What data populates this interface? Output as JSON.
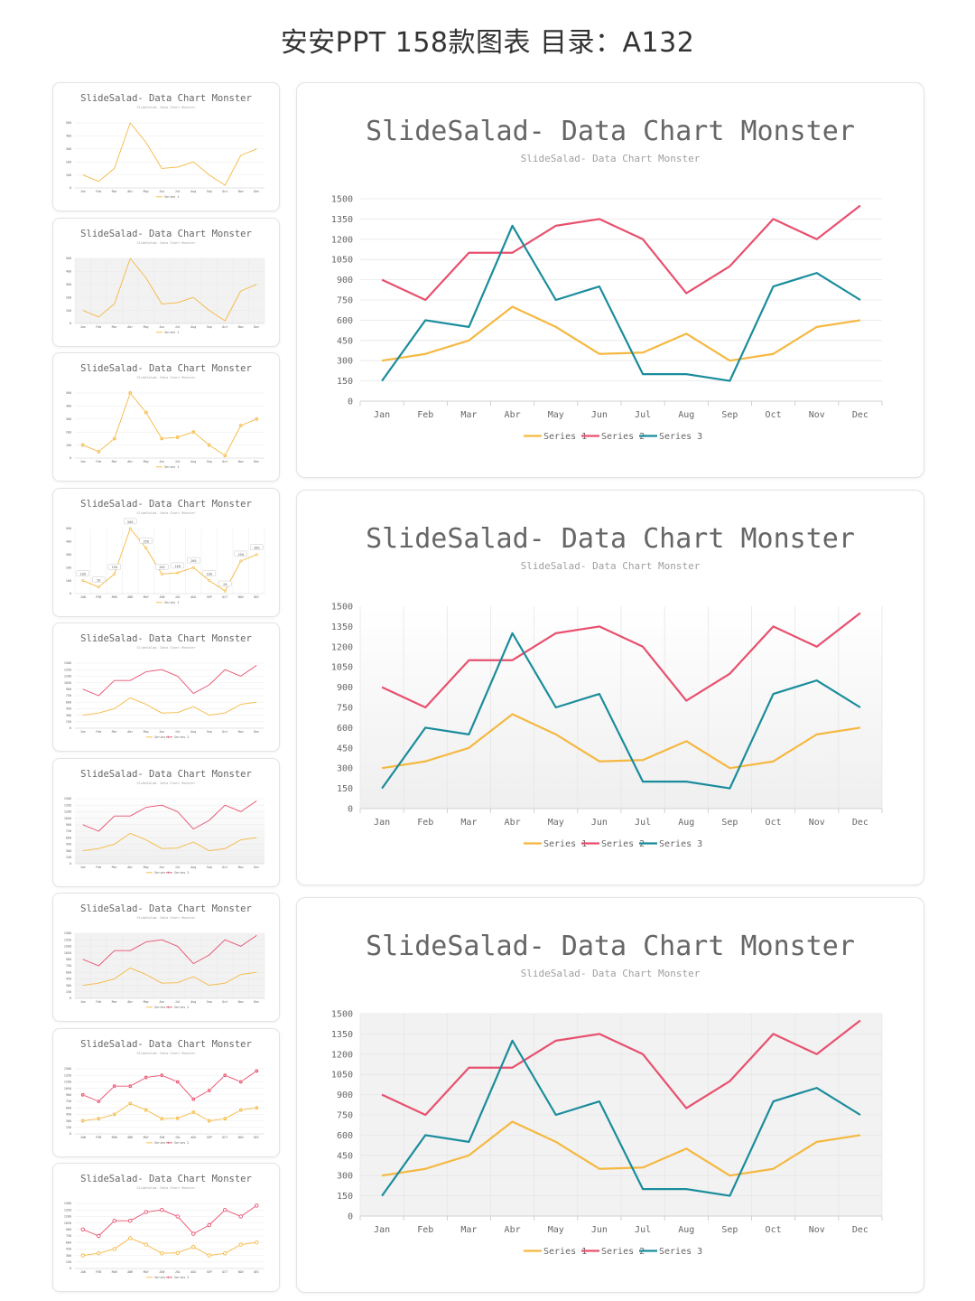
{
  "page": {
    "title": "安安PPT 158款图表 目录：A132"
  },
  "colors": {
    "series1": "#F5B841",
    "series2": "#E8506E",
    "series3": "#1A8C9C",
    "grid": "#e6e6e6",
    "plot_bg_gradient_top": "#ffffff",
    "plot_bg_gradient_bottom": "#efefef",
    "plot_bg_grey": "#f2f2f2"
  },
  "chart_data": [
    {
      "type": "line",
      "title": "SlideSalad- Data Chart Monster",
      "subtitle": "SlideSalad- Data Chart Monster",
      "categories": [
        "Jan",
        "Feb",
        "Mar",
        "Abr",
        "May",
        "Jun",
        "Jul",
        "Aug",
        "Sep",
        "Oct",
        "Nov",
        "Dec"
      ],
      "series": [
        {
          "name": "Series 1",
          "values": [
            300,
            350,
            450,
            700,
            550,
            350,
            360,
            500,
            300,
            350,
            550,
            600
          ]
        },
        {
          "name": "Series 2",
          "values": [
            900,
            750,
            1100,
            1100,
            1300,
            1350,
            1200,
            800,
            1000,
            1350,
            1200,
            1450
          ]
        },
        {
          "name": "Series 3",
          "values": [
            150,
            600,
            550,
            1300,
            750,
            850,
            200,
            200,
            150,
            850,
            950,
            750
          ]
        }
      ],
      "ylim": [
        0,
        1500
      ],
      "yticks": [
        0,
        150,
        300,
        450,
        600,
        750,
        900,
        1050,
        1200,
        1350,
        1500
      ],
      "grid": "horizontal",
      "background": "white",
      "legend": "bottom"
    },
    {
      "type": "line",
      "title": "SlideSalad- Data Chart Monster",
      "subtitle": "SlideSalad- Data Chart Monster",
      "categories": [
        "Jan",
        "Feb",
        "Mar",
        "Abr",
        "May",
        "Jun",
        "Jul",
        "Aug",
        "Sep",
        "Oct",
        "Nov",
        "Dec"
      ],
      "series": [
        {
          "name": "Series 1",
          "values": [
            300,
            350,
            450,
            700,
            550,
            350,
            360,
            500,
            300,
            350,
            550,
            600
          ]
        },
        {
          "name": "Series 2",
          "values": [
            900,
            750,
            1100,
            1100,
            1300,
            1350,
            1200,
            800,
            1000,
            1350,
            1200,
            1450
          ]
        },
        {
          "name": "Series 3",
          "values": [
            150,
            600,
            550,
            1300,
            750,
            850,
            200,
            200,
            150,
            850,
            950,
            750
          ]
        }
      ],
      "ylim": [
        0,
        1500
      ],
      "yticks": [
        0,
        150,
        300,
        450,
        600,
        750,
        900,
        1050,
        1200,
        1350,
        1500
      ],
      "grid": "vertical",
      "background": "gradient",
      "legend": "bottom"
    },
    {
      "type": "line",
      "title": "SlideSalad- Data Chart Monster",
      "subtitle": "SlideSalad- Data Chart Monster",
      "categories": [
        "Jan",
        "Feb",
        "Mar",
        "Abr",
        "May",
        "Jun",
        "Jul",
        "Aug",
        "Sep",
        "Oct",
        "Nov",
        "Dec"
      ],
      "series": [
        {
          "name": "Series 1",
          "values": [
            300,
            350,
            450,
            700,
            550,
            350,
            360,
            500,
            300,
            350,
            550,
            600
          ]
        },
        {
          "name": "Series 2",
          "values": [
            900,
            750,
            1100,
            1100,
            1300,
            1350,
            1200,
            800,
            1000,
            1350,
            1200,
            1450
          ]
        },
        {
          "name": "Series 3",
          "values": [
            150,
            600,
            550,
            1300,
            750,
            850,
            200,
            200,
            150,
            850,
            950,
            750
          ]
        }
      ],
      "ylim": [
        0,
        1500
      ],
      "yticks": [
        0,
        150,
        300,
        450,
        600,
        750,
        900,
        1050,
        1200,
        1350,
        1500
      ],
      "grid": "both",
      "background": "grey",
      "legend": "bottom"
    }
  ],
  "thumbnails": [
    {
      "title": "SlideSalad- Data Chart Monster",
      "subtitle": "SlideSalad- Data Chart Monster",
      "variant": "plain",
      "categories": [
        "Jan",
        "Feb",
        "Mar",
        "Abr",
        "May",
        "Jun",
        "Jul",
        "Aug",
        "Sep",
        "Oct",
        "Nov",
        "Dec"
      ],
      "series": [
        {
          "name": "Series 1",
          "values": [
            100,
            50,
            150,
            500,
            350,
            150,
            160,
            200,
            100,
            20,
            250,
            300
          ]
        }
      ],
      "ylim": [
        0,
        500
      ],
      "yticks": [
        0,
        100,
        200,
        300,
        400,
        500
      ]
    },
    {
      "title": "SlideSalad- Data Chart Monster",
      "subtitle": "SlideSalad- Data Chart Monster",
      "variant": "grey",
      "categories": [
        "Jan",
        "Feb",
        "Mar",
        "Abr",
        "May",
        "Jun",
        "Jul",
        "Aug",
        "Sep",
        "Oct",
        "Nov",
        "Dec"
      ],
      "series": [
        {
          "name": "Series 1",
          "values": [
            100,
            50,
            150,
            500,
            350,
            150,
            160,
            200,
            100,
            20,
            250,
            300
          ]
        }
      ],
      "ylim": [
        0,
        500
      ],
      "yticks": [
        0,
        100,
        200,
        300,
        400,
        500
      ]
    },
    {
      "title": "SlideSalad- Data Chart Monster",
      "subtitle": "SlideSalad- Data Chart Monster",
      "variant": "markers",
      "categories": [
        "Jan",
        "Feb",
        "Mar",
        "Abr",
        "May",
        "Jun",
        "Jul",
        "Aug",
        "Sep",
        "Oct",
        "Nov",
        "Dec"
      ],
      "series": [
        {
          "name": "Series 1",
          "values": [
            100,
            50,
            150,
            500,
            350,
            150,
            160,
            200,
            100,
            20,
            250,
            300
          ]
        }
      ],
      "ylim": [
        0,
        500
      ],
      "yticks": [
        0,
        100,
        200,
        300,
        400,
        500
      ]
    },
    {
      "title": "SlideSalad- Data Chart Monster",
      "subtitle": "SlideSalad- Data Chart Monster",
      "variant": "labels",
      "categories": [
        "JAN",
        "FEB",
        "MAR",
        "ABR",
        "MAY",
        "JUN",
        "JUL",
        "AUG",
        "SEP",
        "OCT",
        "NOV",
        "DEC"
      ],
      "series": [
        {
          "name": "Series 1",
          "values": [
            100,
            50,
            150,
            500,
            350,
            150,
            160,
            200,
            100,
            20,
            250,
            300
          ]
        }
      ],
      "ylim": [
        0,
        500
      ],
      "yticks": [
        0,
        100,
        200,
        300,
        400,
        500
      ]
    },
    {
      "title": "SlideSalad- Data Chart Monster",
      "subtitle": "SlideSalad- Data Chart Monster",
      "variant": "plain",
      "categories": [
        "Jan",
        "Feb",
        "Mar",
        "Abr",
        "May",
        "Jun",
        "Jul",
        "Aug",
        "Sep",
        "Oct",
        "Nov",
        "Dec"
      ],
      "series": [
        {
          "name": "Series 1",
          "values": [
            300,
            350,
            450,
            700,
            550,
            350,
            360,
            500,
            300,
            350,
            550,
            600
          ]
        },
        {
          "name": "Series 2",
          "values": [
            900,
            750,
            1100,
            1100,
            1300,
            1350,
            1200,
            800,
            1000,
            1350,
            1200,
            1450
          ]
        }
      ],
      "ylim": [
        0,
        1500
      ],
      "yticks": [
        0,
        150,
        300,
        450,
        600,
        750,
        900,
        1050,
        1200,
        1350,
        1500
      ]
    },
    {
      "title": "SlideSalad- Data Chart Monster",
      "subtitle": "SlideSalad- Data Chart Monster",
      "variant": "gradient",
      "categories": [
        "Jan",
        "Feb",
        "Mar",
        "Abr",
        "May",
        "Jun",
        "Jul",
        "Aug",
        "Sep",
        "Oct",
        "Nov",
        "Dec"
      ],
      "series": [
        {
          "name": "Series 1",
          "values": [
            300,
            350,
            450,
            700,
            550,
            350,
            360,
            500,
            300,
            350,
            550,
            600
          ]
        },
        {
          "name": "Series 2",
          "values": [
            900,
            750,
            1100,
            1100,
            1300,
            1350,
            1200,
            800,
            1000,
            1350,
            1200,
            1450
          ]
        }
      ],
      "ylim": [
        0,
        1500
      ],
      "yticks": [
        0,
        150,
        300,
        450,
        600,
        750,
        900,
        1050,
        1200,
        1350,
        1500
      ]
    },
    {
      "title": "SlideSalad- Data Chart Monster",
      "subtitle": "SlideSalad- Data Chart Monster",
      "variant": "grey",
      "categories": [
        "Jan",
        "Feb",
        "Mar",
        "Abr",
        "May",
        "Jun",
        "Jul",
        "Aug",
        "Sep",
        "Oct",
        "Nov",
        "Dec"
      ],
      "series": [
        {
          "name": "Series 1",
          "values": [
            300,
            350,
            450,
            700,
            550,
            350,
            360,
            500,
            300,
            350,
            550,
            600
          ]
        },
        {
          "name": "Series 2",
          "values": [
            900,
            750,
            1100,
            1100,
            1300,
            1350,
            1200,
            800,
            1000,
            1350,
            1200,
            1450
          ]
        }
      ],
      "ylim": [
        0,
        1500
      ],
      "yticks": [
        0,
        150,
        300,
        450,
        600,
        750,
        900,
        1050,
        1200,
        1350,
        1500
      ]
    },
    {
      "title": "SlideSalad- Data Chart Monster",
      "subtitle": "SlideSalad- Data Chart Monster",
      "variant": "markers",
      "categories": [
        "JAN",
        "FEB",
        "MAR",
        "ABR",
        "MAY",
        "JUN",
        "JUL",
        "AUG",
        "SEP",
        "OCT",
        "NOV",
        "DEC"
      ],
      "series": [
        {
          "name": "Series 1",
          "values": [
            300,
            350,
            450,
            700,
            550,
            350,
            360,
            500,
            300,
            350,
            550,
            600
          ]
        },
        {
          "name": "Series 2",
          "values": [
            900,
            750,
            1100,
            1100,
            1300,
            1350,
            1200,
            800,
            1000,
            1350,
            1200,
            1450
          ]
        }
      ],
      "ylim": [
        0,
        1500
      ],
      "yticks": [
        0,
        150,
        300,
        450,
        600,
        750,
        900,
        1050,
        1200,
        1350,
        1500
      ]
    },
    {
      "title": "SlideSalad- Data Chart Monster",
      "subtitle": "SlideSalad- Data Chart Monster",
      "variant": "hollow",
      "categories": [
        "JAN",
        "FEB",
        "MAR",
        "ABR",
        "MAY",
        "JUN",
        "JUL",
        "AUG",
        "SEP",
        "OCT",
        "NOV",
        "DEC"
      ],
      "series": [
        {
          "name": "Series 1",
          "values": [
            300,
            350,
            450,
            700,
            550,
            350,
            360,
            500,
            300,
            350,
            550,
            600
          ]
        },
        {
          "name": "Series 2",
          "values": [
            900,
            750,
            1100,
            1100,
            1300,
            1350,
            1200,
            800,
            1000,
            1350,
            1200,
            1450
          ]
        }
      ],
      "ylim": [
        0,
        1500
      ],
      "yticks": [
        0,
        150,
        300,
        450,
        600,
        750,
        900,
        1050,
        1200,
        1350,
        1500
      ]
    }
  ]
}
